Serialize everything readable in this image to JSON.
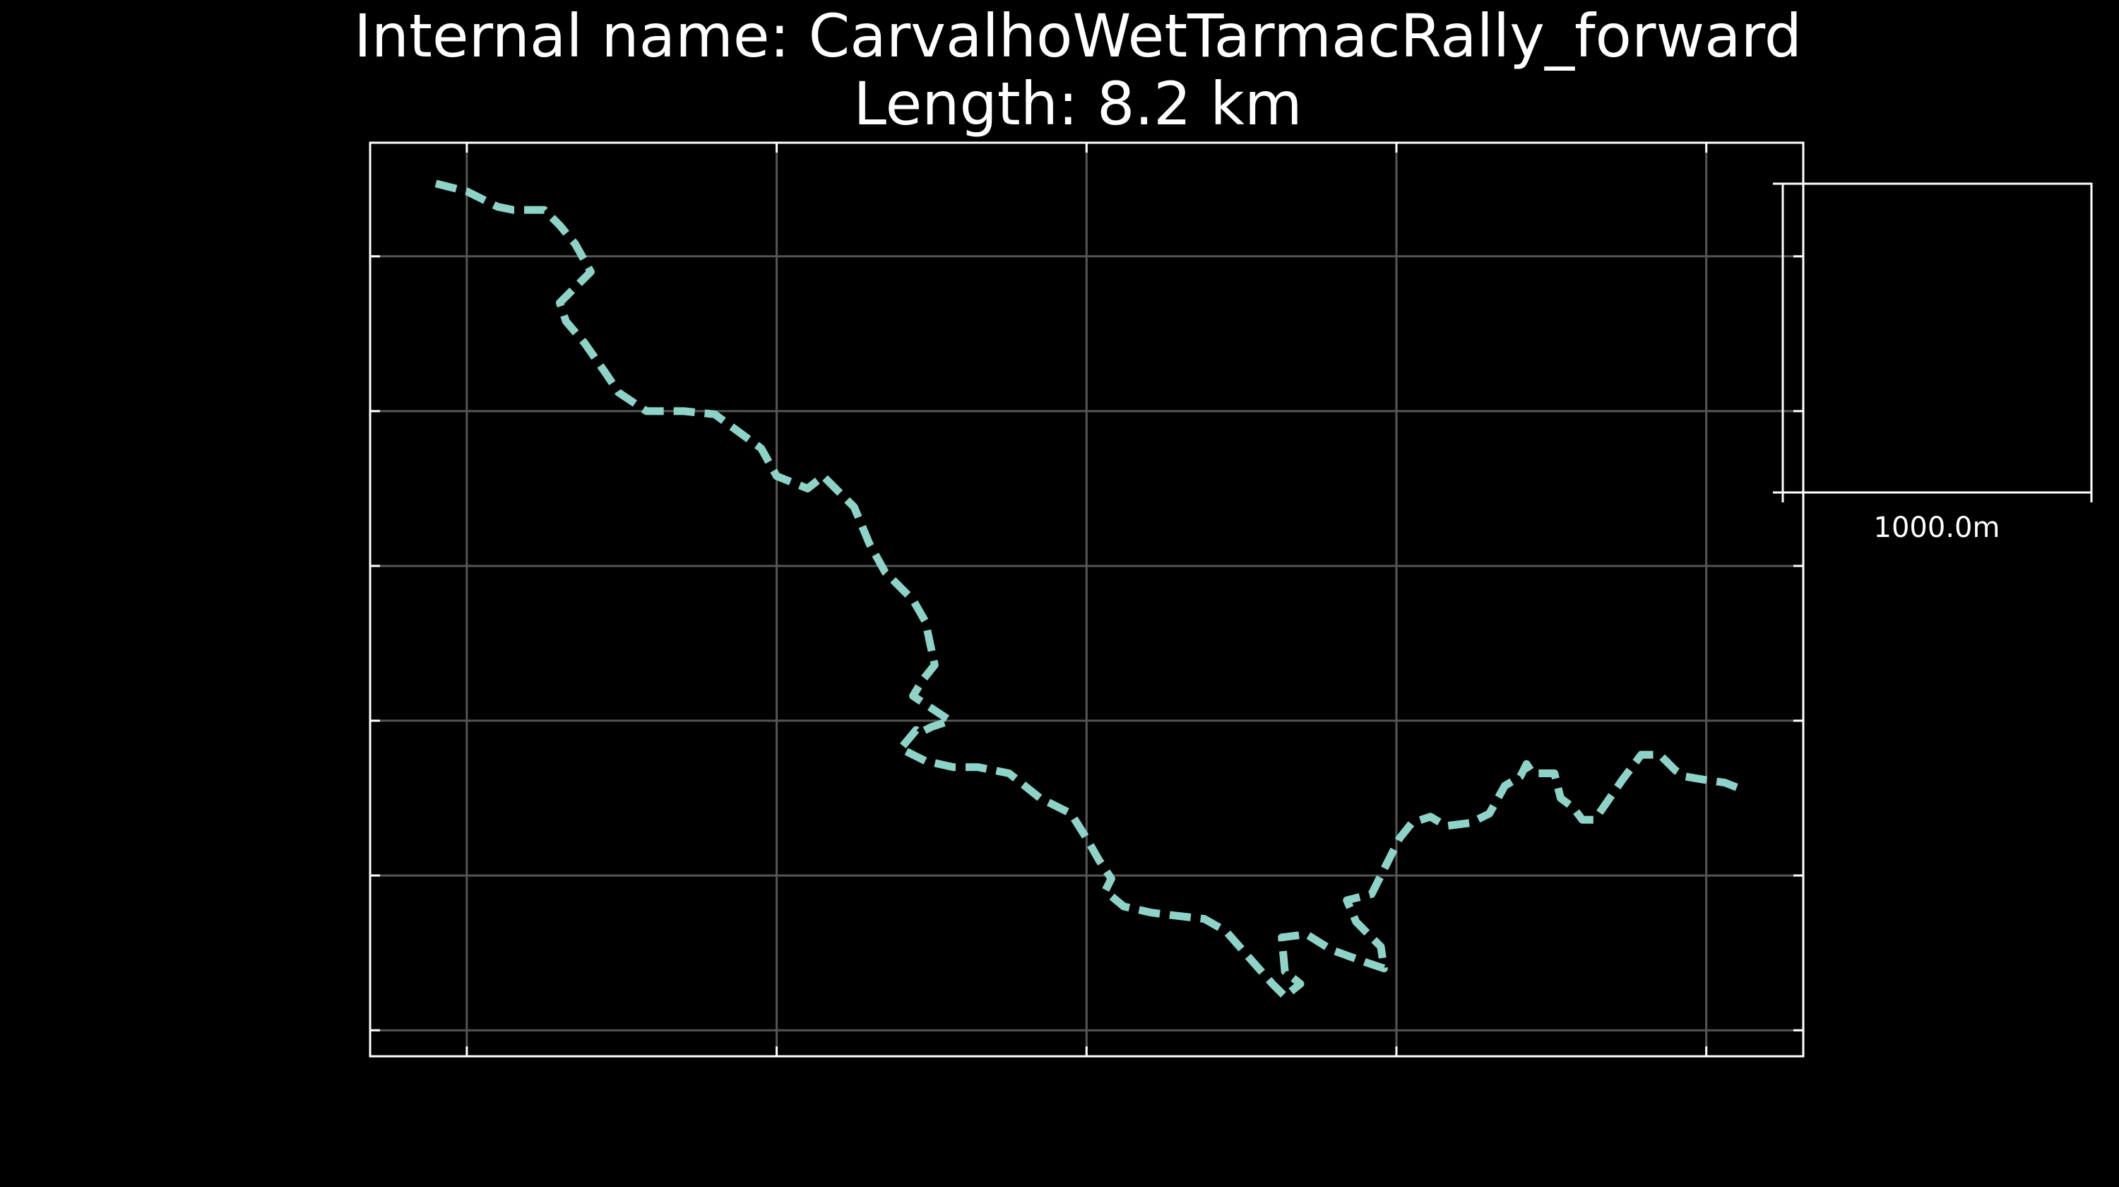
{
  "chart_data": {
    "type": "line",
    "title": "Internal name: CarvalhoWetTarmacRally_forward",
    "subtitle": "Length: 8.2 km",
    "xlabel": "",
    "ylabel": "",
    "xlim": [
      -312,
      4313
    ],
    "ylim": [
      -84,
      2867
    ],
    "x_ticks": [
      0,
      1000,
      2000,
      3000,
      4000
    ],
    "y_ticks": [
      0,
      500,
      1000,
      1500,
      2000,
      2500
    ],
    "grid": true,
    "legend": "none",
    "line_style": "dashed",
    "colors": {
      "track": "#8dd3c7",
      "background": "#000000",
      "frame": "#ffffff",
      "grid": "#555555"
    },
    "scale_bar": {
      "length_m": 1000,
      "label": "1000.0m"
    },
    "series": [
      {
        "x": [
          -100,
          0,
          100,
          150,
          250,
          300,
          350,
          400,
          300,
          320,
          380,
          450,
          490,
          580,
          700,
          800,
          950,
          1000,
          1100,
          1150,
          1250,
          1300,
          1350,
          1380,
          1440,
          1480,
          1510,
          1470,
          1440,
          1560,
          1500,
          1460,
          1450,
          1400,
          1480,
          1570,
          1650,
          1750,
          1850,
          1950,
          2000,
          2040,
          2080,
          2060,
          2120,
          2210,
          2290,
          2380,
          2450,
          2520,
          2600,
          2640,
          2690,
          2640,
          2630,
          2710,
          2790,
          2900,
          2960,
          2950,
          2870,
          2840,
          2920,
          2960,
          3010,
          3050,
          3110,
          3160,
          3240,
          3300,
          3350,
          3400,
          3420,
          3440,
          3510,
          3530,
          3570,
          3600,
          3640,
          3730,
          3790,
          3850,
          3900,
          3930,
          3990,
          4060,
          4110
        ],
        "y": [
          2735,
          2710,
          2660,
          2650,
          2650,
          2600,
          2540,
          2450,
          2350,
          2290,
          2220,
          2120,
          2060,
          2000,
          2000,
          1990,
          1880,
          1790,
          1750,
          1790,
          1690,
          1570,
          1480,
          1450,
          1390,
          1320,
          1180,
          1130,
          1080,
          1000,
          980,
          960,
          970,
          910,
          870,
          850,
          850,
          830,
          750,
          700,
          620,
          550,
          490,
          450,
          400,
          380,
          370,
          360,
          320,
          240,
          150,
          110,
          150,
          190,
          300,
          310,
          260,
          220,
          200,
          270,
          350,
          420,
          440,
          520,
          620,
          670,
          690,
          660,
          670,
          700,
          790,
          820,
          860,
          830,
          830,
          750,
          720,
          680,
          680,
          810,
          890,
          890,
          840,
          820,
          810,
          800,
          780
        ]
      }
    ]
  }
}
